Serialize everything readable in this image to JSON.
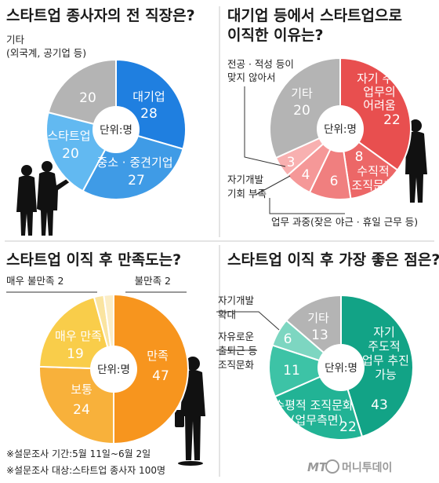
{
  "chart_data": [
    {
      "type": "pie",
      "title": "스타트업 종사자의 전 직장은?",
      "unit_label": "단위:명",
      "slices": [
        {
          "label": "대기업",
          "value": 28,
          "color": "#1f7fe0"
        },
        {
          "label": "중소 · 중견기업",
          "value": 27,
          "color": "#3f9be6"
        },
        {
          "label": "스타트업",
          "value": 20,
          "color": "#62b9f1"
        },
        {
          "label": "기타\n(외국계, 공기업 등)",
          "value": 20,
          "color": "#b4b4b4"
        }
      ]
    },
    {
      "type": "pie",
      "title": "대기업 등에서 스타트업으로\n이직한 이유는?",
      "unit_label": "단위:명",
      "slices": [
        {
          "label": "자기 주도적\n업무의\n어려움",
          "value": 22,
          "color": "#e84f4f"
        },
        {
          "label": "수직적\n조직문화",
          "value": 8,
          "color": "#ec6767"
        },
        {
          "label": "업무 과중(잦은 야근 · 휴일 근무 등)",
          "value": 6,
          "color": "#f07f7f"
        },
        {
          "label": "자기개발\n기회 부족",
          "value": 4,
          "color": "#f59898"
        },
        {
          "label": "전공 · 적성 등이\n맞지 않아서",
          "value": 3,
          "color": "#f8b0b0"
        },
        {
          "label": "기타",
          "value": 20,
          "color": "#b4b4b4"
        }
      ]
    },
    {
      "type": "pie",
      "title": "스타트업 이직 후 만족도는?",
      "unit_label": "단위:명",
      "slices": [
        {
          "label": "만족",
          "value": 47,
          "color": "#f7951e"
        },
        {
          "label": "보통",
          "value": 24,
          "color": "#f8b13b"
        },
        {
          "label": "매우 만족",
          "value": 19,
          "color": "#f9cd4a"
        },
        {
          "label": "매우 불만족",
          "value": 2,
          "color": "#fae4a0"
        },
        {
          "label": "불만족",
          "value": 2,
          "color": "#fbedc6"
        }
      ]
    },
    {
      "type": "pie",
      "title": "스타트업 이직 후 가장 좋은 점은?",
      "unit_label": "단위:명",
      "slices": [
        {
          "label": "자기\n주도적\n업무 추진\n가능",
          "value": 43,
          "color": "#12a386"
        },
        {
          "label": "수평적 조직문화\n(업무측면)",
          "value": 22,
          "color": "#22b395"
        },
        {
          "label": "자유로운\n출퇴근 등\n조직문화",
          "value": 11,
          "color": "#3dc3a6"
        },
        {
          "label": "자기개발\n확대",
          "value": 6,
          "color": "#7dd6c1"
        },
        {
          "label": "기타",
          "value": 13,
          "color": "#b4b4b4"
        }
      ]
    }
  ],
  "footnotes": {
    "period": "※설문조사 기간:5월 11일~6월 2일",
    "target": "※설문조사 대상:스타트업 종사자 100명"
  },
  "logo": {
    "mark": "MT",
    "name": "머니투데이"
  }
}
